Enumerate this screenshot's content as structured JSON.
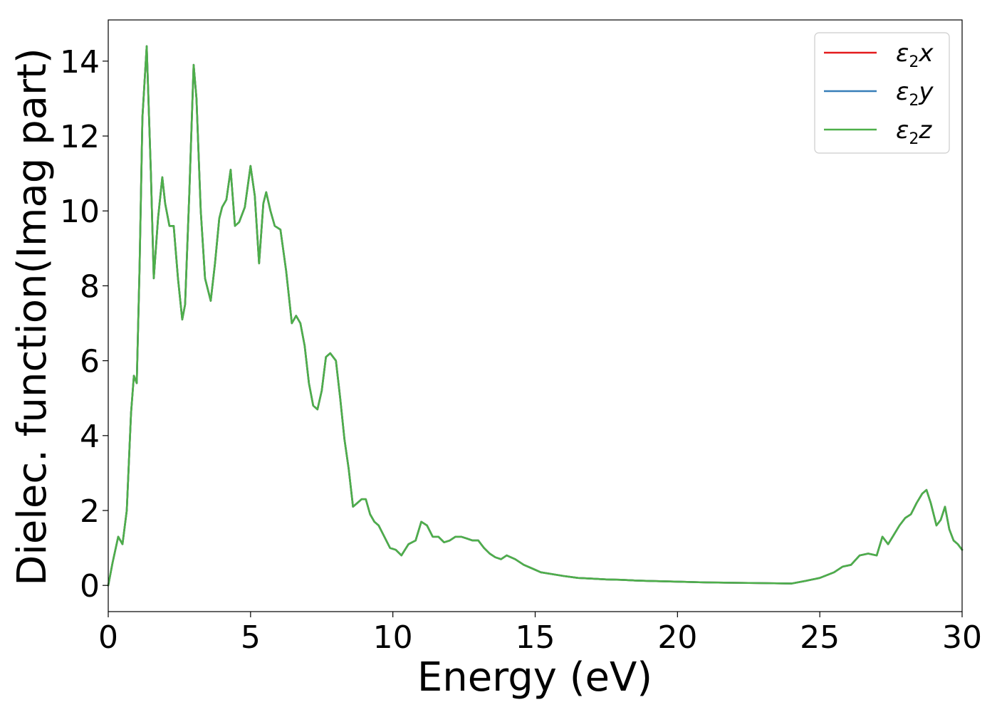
{
  "chart_data": {
    "type": "line",
    "xlabel": "Energy (eV)",
    "ylabel": "Dielec. function(Imag part)",
    "xlim": [
      0,
      30
    ],
    "ylim": [
      -0.7,
      15.1
    ],
    "x_ticks": [
      "0",
      "5",
      "10",
      "15",
      "20",
      "25",
      "30"
    ],
    "y_ticks": [
      "0",
      "2",
      "4",
      "6",
      "8",
      "10",
      "12",
      "14"
    ],
    "legend_position": "top-right",
    "grid": false,
    "series": [
      {
        "name": "ε₂x",
        "label_base": "ε",
        "label_sub": "2",
        "label_var": "x",
        "color": "#e41a1c",
        "x": [
          0,
          0.15,
          0.35,
          0.5,
          0.65,
          0.8,
          0.9,
          1.0,
          1.1,
          1.2,
          1.35,
          1.5,
          1.6,
          1.75,
          1.9,
          2.0,
          2.15,
          2.3,
          2.45,
          2.6,
          2.7,
          2.85,
          3.0,
          3.1,
          3.25,
          3.4,
          3.6,
          3.75,
          3.9,
          4.0,
          4.15,
          4.3,
          4.45,
          4.6,
          4.8,
          5.0,
          5.15,
          5.3,
          5.45,
          5.55,
          5.7,
          5.85,
          6.05,
          6.25,
          6.45,
          6.6,
          6.75,
          6.9,
          7.05,
          7.2,
          7.35,
          7.5,
          7.65,
          7.8,
          8.0,
          8.15,
          8.3,
          8.45,
          8.6,
          8.75,
          8.9,
          9.05,
          9.2,
          9.35,
          9.5,
          9.7,
          9.9,
          10.1,
          10.3,
          10.55,
          10.8,
          11.0,
          11.2,
          11.4,
          11.6,
          11.8,
          12.0,
          12.2,
          12.4,
          12.6,
          12.8,
          13.0,
          13.2,
          13.4,
          13.6,
          13.8,
          14.0,
          14.3,
          14.6,
          14.9,
          15.2,
          15.6,
          16.0,
          16.5,
          17.0,
          17.5,
          18.0,
          18.5,
          19.0,
          19.5,
          20.0,
          21.0,
          22.0,
          23.0,
          24.0,
          24.5,
          25.0,
          25.5,
          25.8,
          26.1,
          26.4,
          26.7,
          27.0,
          27.2,
          27.4,
          27.6,
          27.8,
          28.0,
          28.2,
          28.4,
          28.6,
          28.75,
          28.9,
          29.1,
          29.25,
          29.4,
          29.55,
          29.7,
          29.85,
          30.0
        ],
        "y": [
          0,
          0.6,
          1.3,
          1.1,
          2.0,
          4.6,
          5.6,
          5.4,
          8.5,
          12.5,
          14.4,
          11.0,
          8.2,
          9.8,
          10.9,
          10.2,
          9.6,
          9.6,
          8.2,
          7.1,
          7.5,
          10.5,
          13.9,
          13.0,
          10.0,
          8.2,
          7.6,
          8.6,
          9.8,
          10.1,
          10.3,
          11.1,
          9.6,
          9.7,
          10.1,
          11.2,
          10.4,
          8.6,
          10.2,
          10.5,
          10.0,
          9.6,
          9.5,
          8.4,
          7.0,
          7.2,
          7.0,
          6.4,
          5.4,
          4.8,
          4.7,
          5.2,
          6.1,
          6.2,
          6.0,
          5.0,
          3.9,
          3.1,
          2.1,
          2.2,
          2.3,
          2.3,
          1.9,
          1.7,
          1.6,
          1.3,
          1.0,
          0.95,
          0.8,
          1.1,
          1.2,
          1.7,
          1.6,
          1.3,
          1.3,
          1.15,
          1.2,
          1.3,
          1.3,
          1.25,
          1.2,
          1.2,
          1.0,
          0.85,
          0.75,
          0.7,
          0.8,
          0.7,
          0.55,
          0.45,
          0.35,
          0.3,
          0.25,
          0.2,
          0.18,
          0.16,
          0.15,
          0.13,
          0.12,
          0.11,
          0.1,
          0.08,
          0.07,
          0.06,
          0.05,
          0.12,
          0.2,
          0.35,
          0.5,
          0.55,
          0.8,
          0.85,
          0.8,
          1.3,
          1.1,
          1.35,
          1.6,
          1.8,
          1.9,
          2.2,
          2.45,
          2.55,
          2.2,
          1.6,
          1.75,
          2.1,
          1.5,
          1.2,
          1.1,
          0.95
        ]
      },
      {
        "name": "ε₂y",
        "label_base": "ε",
        "label_sub": "2",
        "label_var": "y",
        "color": "#377eb8",
        "x": [
          0,
          0.15,
          0.35,
          0.5,
          0.65,
          0.8,
          0.9,
          1.0,
          1.1,
          1.2,
          1.35,
          1.5,
          1.6,
          1.75,
          1.9,
          2.0,
          2.15,
          2.3,
          2.45,
          2.6,
          2.7,
          2.85,
          3.0,
          3.1,
          3.25,
          3.4,
          3.6,
          3.75,
          3.9,
          4.0,
          4.15,
          4.3,
          4.45,
          4.6,
          4.8,
          5.0,
          5.15,
          5.3,
          5.45,
          5.55,
          5.7,
          5.85,
          6.05,
          6.25,
          6.45,
          6.6,
          6.75,
          6.9,
          7.05,
          7.2,
          7.35,
          7.5,
          7.65,
          7.8,
          8.0,
          8.15,
          8.3,
          8.45,
          8.6,
          8.75,
          8.9,
          9.05,
          9.2,
          9.35,
          9.5,
          9.7,
          9.9,
          10.1,
          10.3,
          10.55,
          10.8,
          11.0,
          11.2,
          11.4,
          11.6,
          11.8,
          12.0,
          12.2,
          12.4,
          12.6,
          12.8,
          13.0,
          13.2,
          13.4,
          13.6,
          13.8,
          14.0,
          14.3,
          14.6,
          14.9,
          15.2,
          15.6,
          16.0,
          16.5,
          17.0,
          17.5,
          18.0,
          18.5,
          19.0,
          19.5,
          20.0,
          21.0,
          22.0,
          23.0,
          24.0,
          24.5,
          25.0,
          25.5,
          25.8,
          26.1,
          26.4,
          26.7,
          27.0,
          27.2,
          27.4,
          27.6,
          27.8,
          28.0,
          28.2,
          28.4,
          28.6,
          28.75,
          28.9,
          29.1,
          29.25,
          29.4,
          29.55,
          29.7,
          29.85,
          30.0
        ],
        "y": [
          0,
          0.6,
          1.3,
          1.1,
          2.0,
          4.6,
          5.6,
          5.4,
          8.5,
          12.5,
          14.4,
          11.0,
          8.2,
          9.8,
          10.9,
          10.2,
          9.6,
          9.6,
          8.2,
          7.1,
          7.5,
          10.5,
          13.9,
          13.0,
          10.0,
          8.2,
          7.6,
          8.6,
          9.8,
          10.1,
          10.3,
          11.1,
          9.6,
          9.7,
          10.1,
          11.2,
          10.4,
          8.6,
          10.2,
          10.5,
          10.0,
          9.6,
          9.5,
          8.4,
          7.0,
          7.2,
          7.0,
          6.4,
          5.4,
          4.8,
          4.7,
          5.2,
          6.1,
          6.2,
          6.0,
          5.0,
          3.9,
          3.1,
          2.1,
          2.2,
          2.3,
          2.3,
          1.9,
          1.7,
          1.6,
          1.3,
          1.0,
          0.95,
          0.8,
          1.1,
          1.2,
          1.7,
          1.6,
          1.3,
          1.3,
          1.15,
          1.2,
          1.3,
          1.3,
          1.25,
          1.2,
          1.2,
          1.0,
          0.85,
          0.75,
          0.7,
          0.8,
          0.7,
          0.55,
          0.45,
          0.35,
          0.3,
          0.25,
          0.2,
          0.18,
          0.16,
          0.15,
          0.13,
          0.12,
          0.11,
          0.1,
          0.08,
          0.07,
          0.06,
          0.05,
          0.12,
          0.2,
          0.35,
          0.5,
          0.55,
          0.8,
          0.85,
          0.8,
          1.3,
          1.1,
          1.35,
          1.6,
          1.8,
          1.9,
          2.2,
          2.45,
          2.55,
          2.2,
          1.6,
          1.75,
          2.1,
          1.5,
          1.2,
          1.1,
          0.95
        ]
      },
      {
        "name": "ε₂z",
        "label_base": "ε",
        "label_sub": "2",
        "label_var": "z",
        "color": "#4daf4a",
        "x": [
          0,
          0.15,
          0.35,
          0.5,
          0.65,
          0.8,
          0.9,
          1.0,
          1.1,
          1.2,
          1.35,
          1.5,
          1.6,
          1.75,
          1.9,
          2.0,
          2.15,
          2.3,
          2.45,
          2.6,
          2.7,
          2.85,
          3.0,
          3.1,
          3.25,
          3.4,
          3.6,
          3.75,
          3.9,
          4.0,
          4.15,
          4.3,
          4.45,
          4.6,
          4.8,
          5.0,
          5.15,
          5.3,
          5.45,
          5.55,
          5.7,
          5.85,
          6.05,
          6.25,
          6.45,
          6.6,
          6.75,
          6.9,
          7.05,
          7.2,
          7.35,
          7.5,
          7.65,
          7.8,
          8.0,
          8.15,
          8.3,
          8.45,
          8.6,
          8.75,
          8.9,
          9.05,
          9.2,
          9.35,
          9.5,
          9.7,
          9.9,
          10.1,
          10.3,
          10.55,
          10.8,
          11.0,
          11.2,
          11.4,
          11.6,
          11.8,
          12.0,
          12.2,
          12.4,
          12.6,
          12.8,
          13.0,
          13.2,
          13.4,
          13.6,
          13.8,
          14.0,
          14.3,
          14.6,
          14.9,
          15.2,
          15.6,
          16.0,
          16.5,
          17.0,
          17.5,
          18.0,
          18.5,
          19.0,
          19.5,
          20.0,
          21.0,
          22.0,
          23.0,
          24.0,
          24.5,
          25.0,
          25.5,
          25.8,
          26.1,
          26.4,
          26.7,
          27.0,
          27.2,
          27.4,
          27.6,
          27.8,
          28.0,
          28.2,
          28.4,
          28.6,
          28.75,
          28.9,
          29.1,
          29.25,
          29.4,
          29.55,
          29.7,
          29.85,
          30.0
        ],
        "y": [
          0,
          0.6,
          1.3,
          1.1,
          2.0,
          4.6,
          5.6,
          5.4,
          8.5,
          12.5,
          14.4,
          11.0,
          8.2,
          9.8,
          10.9,
          10.2,
          9.6,
          9.6,
          8.2,
          7.1,
          7.5,
          10.5,
          13.9,
          13.0,
          10.0,
          8.2,
          7.6,
          8.6,
          9.8,
          10.1,
          10.3,
          11.1,
          9.6,
          9.7,
          10.1,
          11.2,
          10.4,
          8.6,
          10.2,
          10.5,
          10.0,
          9.6,
          9.5,
          8.4,
          7.0,
          7.2,
          7.0,
          6.4,
          5.4,
          4.8,
          4.7,
          5.2,
          6.1,
          6.2,
          6.0,
          5.0,
          3.9,
          3.1,
          2.1,
          2.2,
          2.3,
          2.3,
          1.9,
          1.7,
          1.6,
          1.3,
          1.0,
          0.95,
          0.8,
          1.1,
          1.2,
          1.7,
          1.6,
          1.3,
          1.3,
          1.15,
          1.2,
          1.3,
          1.3,
          1.25,
          1.2,
          1.2,
          1.0,
          0.85,
          0.75,
          0.7,
          0.8,
          0.7,
          0.55,
          0.45,
          0.35,
          0.3,
          0.25,
          0.2,
          0.18,
          0.16,
          0.15,
          0.13,
          0.12,
          0.11,
          0.1,
          0.08,
          0.07,
          0.06,
          0.05,
          0.12,
          0.2,
          0.35,
          0.5,
          0.55,
          0.8,
          0.85,
          0.8,
          1.3,
          1.1,
          1.35,
          1.6,
          1.8,
          1.9,
          2.2,
          2.45,
          2.55,
          2.2,
          1.6,
          1.75,
          2.1,
          1.5,
          1.2,
          1.1,
          0.95
        ]
      }
    ]
  }
}
